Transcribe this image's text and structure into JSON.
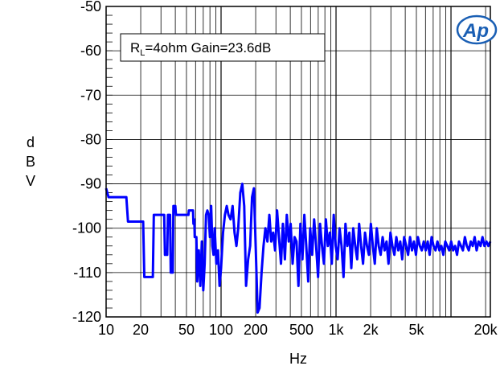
{
  "chart_data": {
    "type": "line",
    "x_scale": "log",
    "xlabel": "Hz",
    "ylabel": "dBV",
    "xlim": [
      10,
      22000
    ],
    "ylim": [
      -120,
      -50
    ],
    "grid": true,
    "x_ticks": [
      {
        "value": 10,
        "label": "10"
      },
      {
        "value": 20,
        "label": "20"
      },
      {
        "value": 50,
        "label": "50"
      },
      {
        "value": 100,
        "label": "100"
      },
      {
        "value": 200,
        "label": "200"
      },
      {
        "value": 500,
        "label": "500"
      },
      {
        "value": 1000,
        "label": "1k"
      },
      {
        "value": 2000,
        "label": "2k"
      },
      {
        "value": 5000,
        "label": "5k"
      },
      {
        "value": 20000,
        "label": "20k"
      }
    ],
    "y_ticks": [
      {
        "value": -50,
        "label": "-50"
      },
      {
        "value": -60,
        "label": "-60"
      },
      {
        "value": -70,
        "label": "-70"
      },
      {
        "value": -80,
        "label": "-80"
      },
      {
        "value": -90,
        "label": "-90"
      },
      {
        "value": -100,
        "label": "-100"
      },
      {
        "value": -110,
        "label": "-110"
      },
      {
        "value": -120,
        "label": "-120"
      }
    ],
    "annotation": {
      "prefix": "R",
      "sub": "L",
      "rest": "=4ohm Gain=23.6dB"
    },
    "logo": {
      "text": "Ap",
      "color": "#1a5fb4"
    },
    "series": [
      {
        "color": "#0000ff",
        "points": [
          [
            10,
            -91
          ],
          [
            10.5,
            -93
          ],
          [
            15,
            -93
          ],
          [
            15.5,
            -98.5
          ],
          [
            21,
            -98.5
          ],
          [
            21.5,
            -111
          ],
          [
            25.5,
            -111
          ],
          [
            26,
            -97
          ],
          [
            32,
            -97
          ],
          [
            32.5,
            -106
          ],
          [
            34,
            -106
          ],
          [
            34.5,
            -97
          ],
          [
            36,
            -97
          ],
          [
            36.5,
            -110
          ],
          [
            38,
            -110
          ],
          [
            38.5,
            -95
          ],
          [
            40,
            -95
          ],
          [
            40.5,
            -97
          ],
          [
            52,
            -97
          ],
          [
            52.5,
            -96
          ],
          [
            57,
            -96
          ],
          [
            57.5,
            -99
          ],
          [
            58.5,
            -98
          ],
          [
            59,
            -102
          ],
          [
            61,
            -102
          ],
          [
            62,
            -112
          ],
          [
            64,
            -105
          ],
          [
            66,
            -113
          ],
          [
            68,
            -103
          ],
          [
            70,
            -114
          ],
          [
            72,
            -108
          ],
          [
            74,
            -97
          ],
          [
            76,
            -96
          ],
          [
            78,
            -97
          ],
          [
            80,
            -102
          ],
          [
            82,
            -95
          ],
          [
            84,
            -104
          ],
          [
            86,
            -106
          ],
          [
            88,
            -100
          ],
          [
            91,
            -108
          ],
          [
            94,
            -105
          ],
          [
            97,
            -113
          ],
          [
            100,
            -109
          ],
          [
            104,
            -101
          ],
          [
            108,
            -97
          ],
          [
            112,
            -95
          ],
          [
            116,
            -97
          ],
          [
            121,
            -98
          ],
          [
            126,
            -95
          ],
          [
            131,
            -101
          ],
          [
            136,
            -104
          ],
          [
            141,
            -100
          ],
          [
            147,
            -92
          ],
          [
            153,
            -90
          ],
          [
            159,
            -95
          ],
          [
            165,
            -113
          ],
          [
            172,
            -107
          ],
          [
            179,
            -104
          ],
          [
            186,
            -93
          ],
          [
            193,
            -91
          ],
          [
            200,
            -104
          ],
          [
            208,
            -119
          ],
          [
            216,
            -118
          ],
          [
            225,
            -110
          ],
          [
            234,
            -104
          ],
          [
            243,
            -100
          ],
          [
            253,
            -103
          ],
          [
            263,
            -97
          ],
          [
            273,
            -103
          ],
          [
            284,
            -101
          ],
          [
            295,
            -105
          ],
          [
            307,
            -96
          ],
          [
            319,
            -102
          ],
          [
            332,
            -108
          ],
          [
            345,
            -99
          ],
          [
            359,
            -107
          ],
          [
            373,
            -97
          ],
          [
            388,
            -103
          ],
          [
            403,
            -99
          ],
          [
            419,
            -108
          ],
          [
            436,
            -102
          ],
          [
            453,
            -103
          ],
          [
            471,
            -113
          ],
          [
            490,
            -99
          ],
          [
            510,
            -107
          ],
          [
            530,
            -97
          ],
          [
            551,
            -104
          ],
          [
            573,
            -112
          ],
          [
            596,
            -100
          ],
          [
            620,
            -106
          ],
          [
            645,
            -98
          ],
          [
            671,
            -104
          ],
          [
            698,
            -111
          ],
          [
            726,
            -99
          ],
          [
            755,
            -104
          ],
          [
            785,
            -108
          ],
          [
            816,
            -98
          ],
          [
            849,
            -104
          ],
          [
            883,
            -101
          ],
          [
            918,
            -108
          ],
          [
            955,
            -97
          ],
          [
            993,
            -104
          ],
          [
            1033,
            -107
          ],
          [
            1074,
            -100
          ],
          [
            1117,
            -104
          ],
          [
            1162,
            -111
          ],
          [
            1208,
            -99
          ],
          [
            1256,
            -104
          ],
          [
            1306,
            -101
          ],
          [
            1358,
            -109
          ],
          [
            1412,
            -100
          ],
          [
            1469,
            -104
          ],
          [
            1528,
            -107
          ],
          [
            1589,
            -99
          ],
          [
            1652,
            -104
          ],
          [
            1718,
            -108
          ],
          [
            1787,
            -101
          ],
          [
            1858,
            -104
          ],
          [
            1932,
            -106
          ],
          [
            2009,
            -99
          ],
          [
            2090,
            -104
          ],
          [
            2174,
            -108
          ],
          [
            2261,
            -100
          ],
          [
            2351,
            -104
          ],
          [
            2445,
            -106
          ],
          [
            2543,
            -102
          ],
          [
            2645,
            -105
          ],
          [
            2751,
            -103
          ],
          [
            2861,
            -108
          ],
          [
            2975,
            -101
          ],
          [
            3094,
            -104
          ],
          [
            3218,
            -106
          ],
          [
            3347,
            -102
          ],
          [
            3481,
            -105
          ],
          [
            3620,
            -103
          ],
          [
            3765,
            -107
          ],
          [
            3916,
            -102
          ],
          [
            4073,
            -104
          ],
          [
            4236,
            -106
          ],
          [
            4405,
            -102
          ],
          [
            4581,
            -105
          ],
          [
            4764,
            -103
          ],
          [
            4955,
            -106
          ],
          [
            5153,
            -102
          ],
          [
            5359,
            -104
          ],
          [
            5573,
            -105
          ],
          [
            5796,
            -103
          ],
          [
            6028,
            -105
          ],
          [
            6269,
            -103
          ],
          [
            6520,
            -106
          ],
          [
            6781,
            -102
          ],
          [
            7052,
            -104
          ],
          [
            7334,
            -105
          ],
          [
            7627,
            -103
          ],
          [
            7932,
            -105
          ],
          [
            8249,
            -104
          ],
          [
            8579,
            -106
          ],
          [
            8922,
            -103
          ],
          [
            9279,
            -104
          ],
          [
            9650,
            -105
          ],
          [
            10036,
            -103
          ],
          [
            10437,
            -105
          ],
          [
            10854,
            -104
          ],
          [
            11288,
            -106
          ],
          [
            11740,
            -103
          ],
          [
            12210,
            -104
          ],
          [
            12698,
            -105
          ],
          [
            13206,
            -102
          ],
          [
            13734,
            -104
          ],
          [
            14283,
            -105
          ],
          [
            14854,
            -103
          ],
          [
            15448,
            -104
          ],
          [
            16066,
            -102
          ],
          [
            16709,
            -105
          ],
          [
            17377,
            -103
          ],
          [
            18072,
            -104
          ],
          [
            18795,
            -102
          ],
          [
            19547,
            -104
          ],
          [
            20329,
            -103
          ],
          [
            21142,
            -104
          ],
          [
            22000,
            -103
          ]
        ]
      }
    ]
  }
}
